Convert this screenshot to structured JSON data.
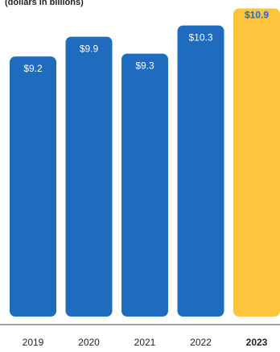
{
  "chart_data": {
    "type": "bar",
    "subtitle": "(dollars in billions)",
    "title": "",
    "xlabel": "",
    "ylabel": "",
    "categories": [
      "2019",
      "2020",
      "2021",
      "2022",
      "2023"
    ],
    "values": [
      9.2,
      9.9,
      9.3,
      10.3,
      10.9
    ],
    "data_labels": [
      "$9.2",
      "$9.9",
      "$9.3",
      "$10.3",
      "$10.9"
    ],
    "ylim": [
      0,
      11.2
    ],
    "highlight_index": 4,
    "grid": false,
    "legend": "none",
    "colors": {
      "bar": "#1f6bbd",
      "highlight_bar": "#fcc53d",
      "label_on_bar": "#ffffff",
      "label_highlight": "#1f6bbd",
      "axis_line": "#444444",
      "tick_text": "#222222"
    }
  }
}
